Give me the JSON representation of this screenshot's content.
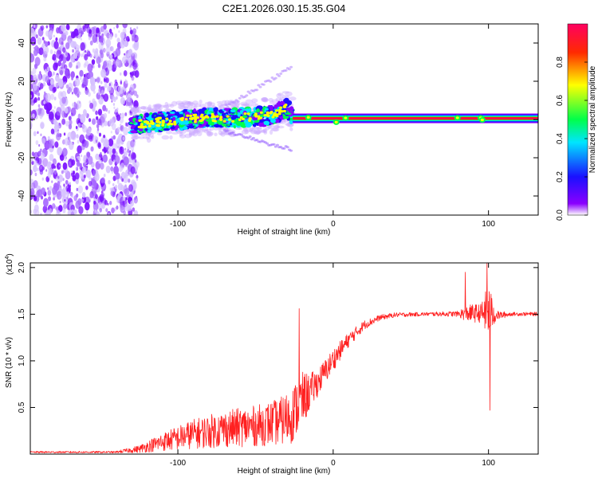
{
  "title": "C2E1.2026.030.15.35.G04",
  "colors": {
    "snr_line": "#ff2020",
    "grid": "#000000",
    "colormap": [
      "#ffffff",
      "#8a00ff",
      "#1a10ff",
      "#00e5ff",
      "#00ff4a",
      "#ffff00",
      "#ff2a00",
      "#ff0060"
    ]
  },
  "chart_data": [
    {
      "id": "spectrogram",
      "type": "heatmap",
      "xlabel": "Height of straight line (km)",
      "ylabel": "Frequency (Hz)",
      "xlim": [
        -195,
        132
      ],
      "ylim": [
        -50,
        50
      ],
      "xticks": [
        {
          "value": -100,
          "label": "-100"
        },
        {
          "value": 0,
          "label": "0"
        },
        {
          "value": 100,
          "label": "100"
        }
      ],
      "yticks": [
        {
          "value": -40,
          "label": "-40"
        },
        {
          "value": -20,
          "label": "-20"
        },
        {
          "value": 0,
          "label": "0"
        },
        {
          "value": 20,
          "label": "20"
        },
        {
          "value": 40,
          "label": "40"
        }
      ],
      "colorbar": {
        "label": "Normalized spectral amplitude",
        "range": [
          0,
          1
        ],
        "ticks": [
          {
            "value": 0.0,
            "label": "0.0"
          },
          {
            "value": 0.2,
            "label": "0.2"
          },
          {
            "value": 0.4,
            "label": "0.4"
          },
          {
            "value": 0.6,
            "label": "0.6"
          },
          {
            "value": 0.8,
            "label": "0.8"
          }
        ]
      },
      "regions": {
        "noise": {
          "x": [
            -195,
            -130
          ],
          "freq": [
            -50,
            50
          ],
          "amplitude": 0.08
        },
        "trace": [
          {
            "x": -130,
            "freq": -3,
            "amplitude": 0.45
          },
          {
            "x": -110,
            "freq": -1,
            "amplitude": 0.5
          },
          {
            "x": -80,
            "freq": 1,
            "amplitude": 0.5
          },
          {
            "x": -60,
            "freq": 1,
            "amplitude": 0.45
          },
          {
            "x": -40,
            "freq": 2,
            "amplitude": 0.5
          },
          {
            "x": -30,
            "freq": 6,
            "amplitude": 0.5
          },
          {
            "x": -25,
            "freq": 1,
            "amplitude": 0.95
          },
          {
            "x": 0,
            "freq": 0,
            "amplitude": 0.95
          },
          {
            "x": 132,
            "freq": 0,
            "amplitude": 0.95
          }
        ]
      }
    },
    {
      "id": "snr",
      "type": "line",
      "xlabel": "Height of straight line (km)",
      "ylabel": "SNR (10 * v/v)",
      "yscale_label": "(x10",
      "yscale_exponent": "4",
      "yscale_close": ")",
      "xlim": [
        -195,
        132
      ],
      "ylim": [
        0,
        2.05
      ],
      "xticks": [
        {
          "value": -100,
          "label": "-100"
        },
        {
          "value": 0,
          "label": "0"
        },
        {
          "value": 100,
          "label": "100"
        }
      ],
      "yticks": [
        {
          "value": 0.5,
          "label": "0.5"
        },
        {
          "value": 1.0,
          "label": "1.0"
        },
        {
          "value": 1.5,
          "label": "1.5"
        },
        {
          "value": 2.0,
          "label": "2.0"
        }
      ],
      "envelope": {
        "x": [
          -195,
          -140,
          -125,
          -110,
          -90,
          -70,
          -50,
          -35,
          -27,
          -20,
          -15,
          -10,
          0,
          10,
          20,
          30,
          40,
          60,
          80,
          85,
          90,
          95,
          100,
          105,
          115,
          132
        ],
        "base": [
          0.02,
          0.02,
          0.05,
          0.12,
          0.2,
          0.25,
          0.28,
          0.32,
          0.38,
          0.55,
          0.65,
          0.75,
          1.0,
          1.22,
          1.38,
          1.46,
          1.49,
          1.5,
          1.5,
          1.5,
          1.5,
          1.5,
          1.5,
          1.48,
          1.5,
          1.5
        ],
        "noise": [
          0.01,
          0.01,
          0.04,
          0.1,
          0.16,
          0.2,
          0.22,
          0.25,
          0.3,
          0.3,
          0.2,
          0.15,
          0.12,
          0.08,
          0.05,
          0.03,
          0.025,
          0.02,
          0.03,
          0.08,
          0.1,
          0.1,
          0.3,
          0.05,
          0.02,
          0.02
        ]
      },
      "spikes": [
        {
          "x": -22,
          "y": 1.56
        },
        {
          "x": 85,
          "y": 1.95
        },
        {
          "x": 99,
          "y": 2.05
        },
        {
          "x": 101,
          "y": 0.47
        }
      ]
    }
  ]
}
